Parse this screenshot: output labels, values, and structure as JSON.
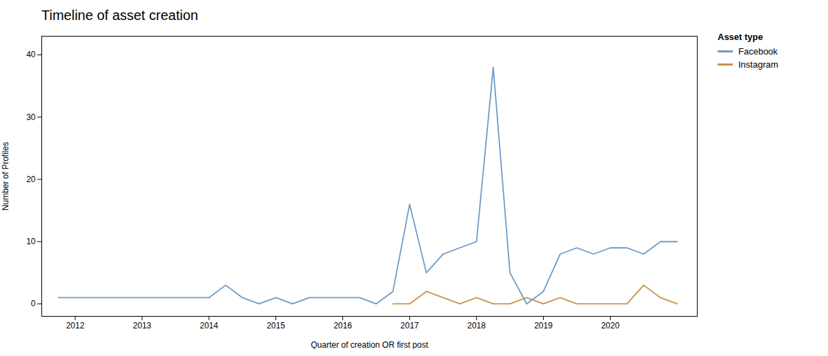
{
  "chart_data": {
    "type": "line",
    "title": "Timeline of asset creation",
    "xlabel": "Quarter of creation OR first post",
    "ylabel": "Number of Profiles",
    "legend_title": "Asset type",
    "legend": "upper right",
    "grid": false,
    "x": [
      2011.75,
      2012.0,
      2012.25,
      2012.5,
      2012.75,
      2013.0,
      2013.25,
      2013.5,
      2013.75,
      2014.0,
      2014.25,
      2014.5,
      2014.75,
      2015.0,
      2015.25,
      2015.5,
      2015.75,
      2016.0,
      2016.25,
      2016.5,
      2016.75,
      2017.0,
      2017.25,
      2017.5,
      2017.75,
      2018.0,
      2018.25,
      2018.5,
      2018.75,
      2019.0,
      2019.25,
      2019.5,
      2019.75,
      2020.0,
      2020.25,
      2020.5,
      2020.75,
      2021.0
    ],
    "series": [
      {
        "name": "Facebook",
        "color": "#6b9bc9",
        "values": [
          1,
          1,
          1,
          1,
          1,
          1,
          1,
          1,
          1,
          1,
          3,
          1,
          0,
          1,
          0,
          1,
          1,
          1,
          1,
          0,
          2,
          16,
          5,
          8,
          9,
          10,
          38,
          5,
          0,
          2,
          8,
          9,
          8,
          9,
          9,
          8,
          10,
          10
        ]
      },
      {
        "name": "Instagram",
        "color": "#c9924a",
        "values": [
          null,
          null,
          null,
          null,
          null,
          null,
          null,
          null,
          null,
          null,
          null,
          null,
          null,
          null,
          null,
          null,
          null,
          null,
          null,
          null,
          0,
          0,
          2,
          1,
          0,
          1,
          0,
          0,
          1,
          0,
          1,
          0,
          0,
          0,
          0,
          3,
          1,
          0
        ]
      }
    ],
    "xlim": [
      2011.5,
      2021.3
    ],
    "xticks": [
      2012,
      2013,
      2014,
      2015,
      2016,
      2017,
      2018,
      2019,
      2020
    ],
    "ylim": [
      -2,
      43
    ],
    "yticks": [
      0,
      10,
      20,
      30,
      40
    ]
  }
}
